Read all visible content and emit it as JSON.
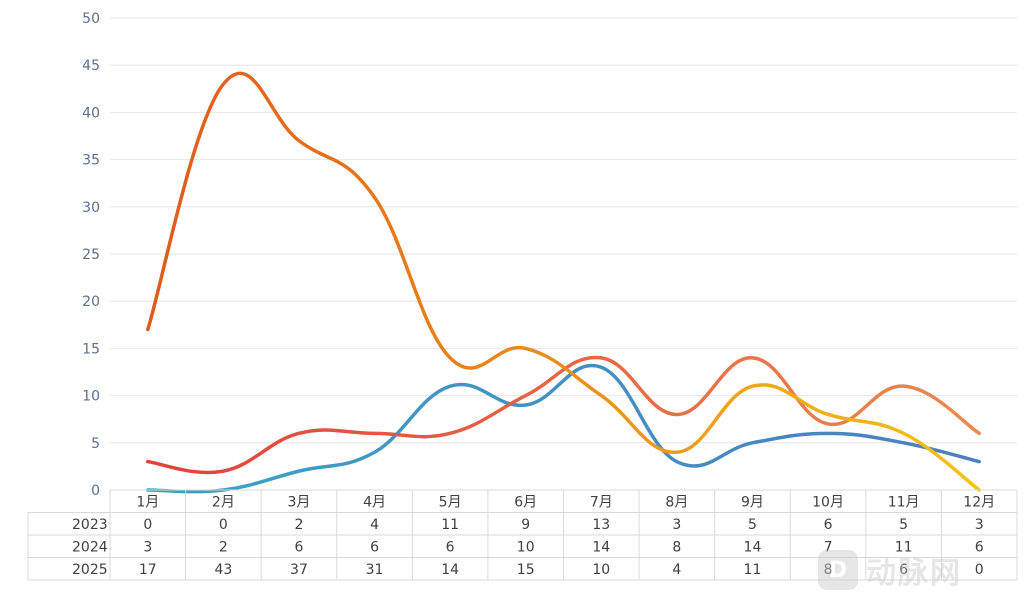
{
  "chart_data": {
    "type": "line",
    "categories": [
      "1月",
      "2月",
      "3月",
      "4月",
      "5月",
      "6月",
      "7月",
      "8月",
      "9月",
      "10月",
      "11月",
      "12月"
    ],
    "series": [
      {
        "name": "2023",
        "values": [
          0,
          0,
          2,
          4,
          11,
          9,
          13,
          3,
          5,
          6,
          5,
          3
        ],
        "color_start": "#3aa3c4",
        "color_end": "#4a7fc0"
      },
      {
        "name": "2024",
        "values": [
          3,
          2,
          6,
          6,
          6,
          10,
          14,
          8,
          14,
          7,
          11,
          6
        ],
        "color_start": "#e0433a",
        "color_end": "#ea8a4e"
      },
      {
        "name": "2025",
        "values": [
          17,
          43,
          37,
          31,
          14,
          15,
          10,
          4,
          11,
          8,
          6,
          0
        ],
        "color_start": "#e05a1c",
        "color_end": "#f3c21a"
      }
    ],
    "ylim": [
      0,
      50
    ],
    "yticks": [
      0,
      5,
      10,
      15,
      20,
      25,
      30,
      35,
      40,
      45,
      50
    ],
    "grid": true,
    "legend": "data-table-below"
  },
  "watermark": {
    "logo": "D",
    "text": "动脉网"
  }
}
